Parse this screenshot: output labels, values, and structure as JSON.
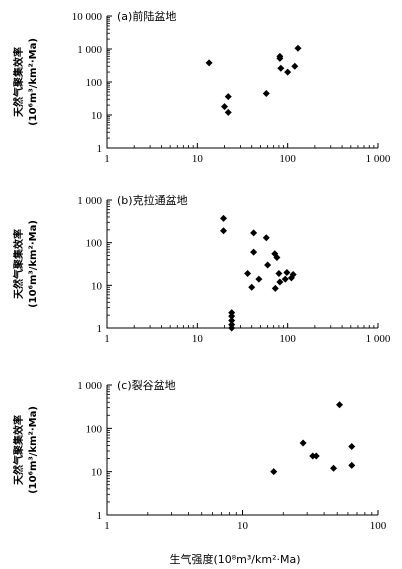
{
  "chart_data": [
    {
      "type": "scatter",
      "title": "(a)前陆盆地",
      "ylabel_line1": "天然气聚集效率",
      "ylabel_line2": "(10⁶m³/km²·Ma)",
      "xscale": "log",
      "yscale": "log",
      "xlim": [
        1,
        1000
      ],
      "ylim": [
        1,
        10000
      ],
      "xticks": [
        1,
        10,
        100,
        1000
      ],
      "xtick_labels": [
        "1",
        "10",
        "100",
        "1 000"
      ],
      "yticks": [
        1,
        10,
        100,
        1000,
        10000
      ],
      "ytick_labels": [
        "1",
        "10",
        "100",
        "1 000",
        "10 000"
      ],
      "grid": false,
      "points": [
        {
          "x": 13.5,
          "y": 380
        },
        {
          "x": 20,
          "y": 18
        },
        {
          "x": 22,
          "y": 36
        },
        {
          "x": 22,
          "y": 12
        },
        {
          "x": 58,
          "y": 45
        },
        {
          "x": 82,
          "y": 600
        },
        {
          "x": 82,
          "y": 520
        },
        {
          "x": 84,
          "y": 260
        },
        {
          "x": 100,
          "y": 200
        },
        {
          "x": 120,
          "y": 300
        },
        {
          "x": 130,
          "y": 1050
        }
      ]
    },
    {
      "type": "scatter",
      "title": "(b)克拉通盆地",
      "ylabel_line1": "天然气聚集效率",
      "ylabel_line2": "(10⁶m³/km²·Ma)",
      "xscale": "log",
      "yscale": "log",
      "xlim": [
        1,
        1000
      ],
      "ylim": [
        1,
        1000
      ],
      "xticks": [
        1,
        10,
        100,
        1000
      ],
      "xtick_labels": [
        "1",
        "10",
        "100",
        "1 000"
      ],
      "yticks": [
        1,
        10,
        100,
        1000
      ],
      "ytick_labels": [
        "1",
        "10",
        "100",
        "1 000"
      ],
      "grid": false,
      "points": [
        {
          "x": 19.5,
          "y": 370
        },
        {
          "x": 19.5,
          "y": 190
        },
        {
          "x": 24,
          "y": 2.3
        },
        {
          "x": 24,
          "y": 1.9
        },
        {
          "x": 24,
          "y": 1.5
        },
        {
          "x": 24,
          "y": 1.2
        },
        {
          "x": 24,
          "y": 1.0
        },
        {
          "x": 36,
          "y": 19
        },
        {
          "x": 40,
          "y": 9
        },
        {
          "x": 42,
          "y": 170
        },
        {
          "x": 42,
          "y": 60
        },
        {
          "x": 48,
          "y": 14
        },
        {
          "x": 58,
          "y": 130
        },
        {
          "x": 60,
          "y": 30
        },
        {
          "x": 72,
          "y": 55
        },
        {
          "x": 73,
          "y": 8.5
        },
        {
          "x": 76,
          "y": 45
        },
        {
          "x": 80,
          "y": 19
        },
        {
          "x": 82,
          "y": 12
        },
        {
          "x": 94,
          "y": 14
        },
        {
          "x": 98,
          "y": 20
        },
        {
          "x": 110,
          "y": 15
        },
        {
          "x": 115,
          "y": 18
        }
      ]
    },
    {
      "type": "scatter",
      "title": "(c)裂谷盆地",
      "ylabel_line1": "天然气聚集效率",
      "ylabel_line2": "(10⁶m³/km²·Ma)",
      "xscale": "log",
      "yscale": "log",
      "xlim": [
        1,
        100
      ],
      "ylim": [
        1,
        1000
      ],
      "xticks": [
        1,
        10,
        100
      ],
      "xtick_labels": [
        "1",
        "10",
        "100"
      ],
      "yticks": [
        1,
        10,
        100,
        1000
      ],
      "ytick_labels": [
        "1",
        "10",
        "100",
        "1 000"
      ],
      "grid": false,
      "points": [
        {
          "x": 17,
          "y": 10
        },
        {
          "x": 28,
          "y": 46
        },
        {
          "x": 33,
          "y": 23
        },
        {
          "x": 35,
          "y": 23
        },
        {
          "x": 47,
          "y": 12
        },
        {
          "x": 52,
          "y": 350
        },
        {
          "x": 64,
          "y": 38
        },
        {
          "x": 64,
          "y": 14
        }
      ]
    }
  ],
  "shared_xlabel": "生气强度(10⁸m³/km²·Ma)"
}
